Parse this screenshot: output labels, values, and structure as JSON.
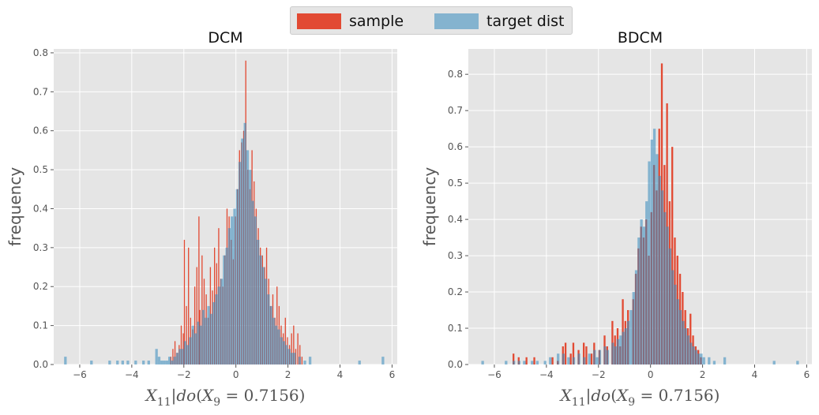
{
  "legend": {
    "items": [
      {
        "label": "sample",
        "color": "#E24A33"
      },
      {
        "label": "target dist",
        "color": "#348ABD"
      }
    ]
  },
  "chart_data": [
    {
      "type": "histogram",
      "title": "DCM",
      "xlabel": "X_{11}|do(X_9 = 0.7156)",
      "ylabel": "frequency",
      "xlim": [
        -7,
        6.2
      ],
      "ylim": [
        0,
        0.81
      ],
      "xticks": [
        -6,
        -4,
        -2,
        0,
        2,
        4,
        6
      ],
      "yticks": [
        0.0,
        0.1,
        0.2,
        0.3,
        0.4,
        0.5,
        0.6,
        0.7,
        0.8
      ],
      "ytick_labels": [
        "0.0",
        "0.1",
        "0.2",
        "0.3",
        "0.4",
        "0.5",
        "0.6",
        "0.7",
        "0.8"
      ],
      "grid": true,
      "series": [
        {
          "name": "sample",
          "color": "#E24A33",
          "bin_width": 0.04,
          "bins": [
            [
              -2.52,
              0.02
            ],
            [
              -2.44,
              0.04
            ],
            [
              -2.36,
              0.06
            ],
            [
              -2.28,
              0.03
            ],
            [
              -2.2,
              0.05
            ],
            [
              -2.12,
              0.1
            ],
            [
              -2.04,
              0.08
            ],
            [
              -2.0,
              0.32
            ],
            [
              -1.92,
              0.15
            ],
            [
              -1.84,
              0.3
            ],
            [
              -1.76,
              0.12
            ],
            [
              -1.68,
              0.09
            ],
            [
              -1.6,
              0.2
            ],
            [
              -1.52,
              0.25
            ],
            [
              -1.44,
              0.38
            ],
            [
              -1.4,
              0.14
            ],
            [
              -1.32,
              0.28
            ],
            [
              -1.24,
              0.22
            ],
            [
              -1.16,
              0.18
            ],
            [
              -1.08,
              0.12
            ],
            [
              -1.0,
              0.25
            ],
            [
              -0.92,
              0.19
            ],
            [
              -0.84,
              0.3
            ],
            [
              -0.76,
              0.26
            ],
            [
              -0.68,
              0.35
            ],
            [
              -0.6,
              0.22
            ],
            [
              -0.52,
              0.2
            ],
            [
              -0.44,
              0.28
            ],
            [
              -0.36,
              0.4
            ],
            [
              -0.28,
              0.38
            ],
            [
              -0.2,
              0.32
            ],
            [
              -0.12,
              0.27
            ],
            [
              -0.04,
              0.38
            ],
            [
              0.04,
              0.45
            ],
            [
              0.12,
              0.55
            ],
            [
              0.2,
              0.57
            ],
            [
              0.28,
              0.6
            ],
            [
              0.36,
              0.78
            ],
            [
              0.44,
              0.5
            ],
            [
              0.52,
              0.45
            ],
            [
              0.6,
              0.55
            ],
            [
              0.68,
              0.47
            ],
            [
              0.76,
              0.4
            ],
            [
              0.84,
              0.35
            ],
            [
              0.92,
              0.3
            ],
            [
              1.0,
              0.28
            ],
            [
              1.08,
              0.25
            ],
            [
              1.16,
              0.3
            ],
            [
              1.24,
              0.22
            ],
            [
              1.32,
              0.15
            ],
            [
              1.4,
              0.18
            ],
            [
              1.48,
              0.12
            ],
            [
              1.56,
              0.2
            ],
            [
              1.64,
              0.15
            ],
            [
              1.72,
              0.1
            ],
            [
              1.8,
              0.08
            ],
            [
              1.88,
              0.12
            ],
            [
              1.96,
              0.07
            ],
            [
              2.04,
              0.05
            ],
            [
              2.12,
              0.08
            ],
            [
              2.2,
              0.1
            ],
            [
              2.28,
              0.04
            ],
            [
              2.36,
              0.08
            ],
            [
              2.44,
              0.05
            ],
            [
              2.52,
              0.02
            ]
          ]
        },
        {
          "name": "target dist",
          "color": "#348ABD",
          "bin_width": 0.1,
          "bins": [
            [
              -6.6,
              0.02
            ],
            [
              -5.6,
              0.01
            ],
            [
              -4.9,
              0.01
            ],
            [
              -4.6,
              0.01
            ],
            [
              -4.4,
              0.01
            ],
            [
              -4.2,
              0.01
            ],
            [
              -3.9,
              0.01
            ],
            [
              -3.6,
              0.01
            ],
            [
              -3.4,
              0.01
            ],
            [
              -3.1,
              0.04
            ],
            [
              -3.0,
              0.02
            ],
            [
              -2.9,
              0.01
            ],
            [
              -2.8,
              0.01
            ],
            [
              -2.7,
              0.01
            ],
            [
              -2.6,
              0.02
            ],
            [
              -2.5,
              0.01
            ],
            [
              -2.4,
              0.02
            ],
            [
              -2.3,
              0.03
            ],
            [
              -2.2,
              0.04
            ],
            [
              -2.1,
              0.04
            ],
            [
              -2.0,
              0.06
            ],
            [
              -1.9,
              0.05
            ],
            [
              -1.8,
              0.07
            ],
            [
              -1.7,
              0.1
            ],
            [
              -1.6,
              0.08
            ],
            [
              -1.5,
              0.11
            ],
            [
              -1.4,
              0.1
            ],
            [
              -1.3,
              0.14
            ],
            [
              -1.2,
              0.12
            ],
            [
              -1.1,
              0.15
            ],
            [
              -1.0,
              0.13
            ],
            [
              -0.9,
              0.16
            ],
            [
              -0.8,
              0.18
            ],
            [
              -0.7,
              0.2
            ],
            [
              -0.6,
              0.22
            ],
            [
              -0.5,
              0.28
            ],
            [
              -0.4,
              0.3
            ],
            [
              -0.3,
              0.35
            ],
            [
              -0.2,
              0.38
            ],
            [
              -0.1,
              0.4
            ],
            [
              0.0,
              0.45
            ],
            [
              0.1,
              0.52
            ],
            [
              0.2,
              0.58
            ],
            [
              0.3,
              0.62
            ],
            [
              0.4,
              0.55
            ],
            [
              0.5,
              0.5
            ],
            [
              0.6,
              0.42
            ],
            [
              0.7,
              0.38
            ],
            [
              0.8,
              0.32
            ],
            [
              0.9,
              0.28
            ],
            [
              1.0,
              0.25
            ],
            [
              1.1,
              0.22
            ],
            [
              1.2,
              0.18
            ],
            [
              1.3,
              0.15
            ],
            [
              1.4,
              0.12
            ],
            [
              1.5,
              0.1
            ],
            [
              1.6,
              0.09
            ],
            [
              1.7,
              0.07
            ],
            [
              1.8,
              0.06
            ],
            [
              1.9,
              0.05
            ],
            [
              2.0,
              0.04
            ],
            [
              2.1,
              0.03
            ],
            [
              2.2,
              0.03
            ],
            [
              2.4,
              0.02
            ],
            [
              2.6,
              0.01
            ],
            [
              2.8,
              0.02
            ],
            [
              4.7,
              0.01
            ],
            [
              5.6,
              0.02
            ]
          ]
        }
      ]
    },
    {
      "type": "histogram",
      "title": "BDCM",
      "xlabel": "X_{11}|do(X_9 = 0.7156)",
      "ylabel": "frequency",
      "xlim": [
        -7,
        6.2
      ],
      "ylim": [
        0,
        0.87
      ],
      "xticks": [
        -6,
        -4,
        -2,
        0,
        2,
        4,
        6
      ],
      "yticks": [
        0.0,
        0.1,
        0.2,
        0.3,
        0.4,
        0.5,
        0.6,
        0.7,
        0.8
      ],
      "ytick_labels": [
        "0.0",
        "0.1",
        "0.2",
        "0.3",
        "0.4",
        "0.5",
        "0.6",
        "0.7",
        "0.8"
      ],
      "grid": true,
      "series": [
        {
          "name": "sample",
          "color": "#E24A33",
          "bin_width": 0.07,
          "bins": [
            [
              -5.3,
              0.03
            ],
            [
              -5.1,
              0.02
            ],
            [
              -4.8,
              0.02
            ],
            [
              -4.5,
              0.02
            ],
            [
              -3.8,
              0.02
            ],
            [
              -3.6,
              0.01
            ],
            [
              -3.4,
              0.05
            ],
            [
              -3.3,
              0.06
            ],
            [
              -3.1,
              0.03
            ],
            [
              -3.0,
              0.06
            ],
            [
              -2.8,
              0.04
            ],
            [
              -2.6,
              0.06
            ],
            [
              -2.5,
              0.05
            ],
            [
              -2.3,
              0.03
            ],
            [
              -2.2,
              0.06
            ],
            [
              -2.0,
              0.04
            ],
            [
              -1.8,
              0.08
            ],
            [
              -1.7,
              0.05
            ],
            [
              -1.5,
              0.12
            ],
            [
              -1.4,
              0.08
            ],
            [
              -1.3,
              0.1
            ],
            [
              -1.2,
              0.05
            ],
            [
              -1.1,
              0.18
            ],
            [
              -1.0,
              0.12
            ],
            [
              -0.9,
              0.15
            ],
            [
              -0.7,
              0.18
            ],
            [
              -0.6,
              0.25
            ],
            [
              -0.5,
              0.32
            ],
            [
              -0.4,
              0.38
            ],
            [
              -0.3,
              0.35
            ],
            [
              -0.2,
              0.4
            ],
            [
              -0.1,
              0.3
            ],
            [
              0.0,
              0.42
            ],
            [
              0.1,
              0.55
            ],
            [
              0.2,
              0.48
            ],
            [
              0.3,
              0.65
            ],
            [
              0.4,
              0.83
            ],
            [
              0.5,
              0.55
            ],
            [
              0.6,
              0.72
            ],
            [
              0.7,
              0.45
            ],
            [
              0.8,
              0.6
            ],
            [
              0.9,
              0.35
            ],
            [
              1.0,
              0.3
            ],
            [
              1.1,
              0.25
            ],
            [
              1.2,
              0.2
            ],
            [
              1.3,
              0.15
            ],
            [
              1.4,
              0.1
            ],
            [
              1.5,
              0.14
            ],
            [
              1.6,
              0.08
            ],
            [
              1.7,
              0.05
            ],
            [
              1.8,
              0.04
            ],
            [
              1.9,
              0.02
            ]
          ]
        },
        {
          "name": "target dist",
          "color": "#348ABD",
          "bin_width": 0.1,
          "bins": [
            [
              -6.5,
              0.01
            ],
            [
              -5.6,
              0.01
            ],
            [
              -5.3,
              0.01
            ],
            [
              -5.1,
              0.01
            ],
            [
              -4.9,
              0.01
            ],
            [
              -4.6,
              0.01
            ],
            [
              -4.4,
              0.01
            ],
            [
              -4.1,
              0.01
            ],
            [
              -3.9,
              0.02
            ],
            [
              -3.6,
              0.03
            ],
            [
              -3.4,
              0.03
            ],
            [
              -3.2,
              0.02
            ],
            [
              -3.0,
              0.02
            ],
            [
              -2.8,
              0.03
            ],
            [
              -2.6,
              0.02
            ],
            [
              -2.4,
              0.03
            ],
            [
              -2.2,
              0.04
            ],
            [
              -2.1,
              0.02
            ],
            [
              -2.0,
              0.04
            ],
            [
              -1.8,
              0.05
            ],
            [
              -1.7,
              0.04
            ],
            [
              -1.5,
              0.06
            ],
            [
              -1.4,
              0.05
            ],
            [
              -1.3,
              0.07
            ],
            [
              -1.2,
              0.08
            ],
            [
              -1.1,
              0.09
            ],
            [
              -1.0,
              0.1
            ],
            [
              -0.9,
              0.12
            ],
            [
              -0.8,
              0.15
            ],
            [
              -0.7,
              0.2
            ],
            [
              -0.6,
              0.26
            ],
            [
              -0.5,
              0.35
            ],
            [
              -0.4,
              0.4
            ],
            [
              -0.3,
              0.38
            ],
            [
              -0.2,
              0.45
            ],
            [
              -0.1,
              0.56
            ],
            [
              0.0,
              0.62
            ],
            [
              0.1,
              0.65
            ],
            [
              0.2,
              0.58
            ],
            [
              0.3,
              0.52
            ],
            [
              0.4,
              0.48
            ],
            [
              0.5,
              0.42
            ],
            [
              0.6,
              0.38
            ],
            [
              0.7,
              0.32
            ],
            [
              0.8,
              0.26
            ],
            [
              0.9,
              0.22
            ],
            [
              1.0,
              0.18
            ],
            [
              1.1,
              0.15
            ],
            [
              1.2,
              0.12
            ],
            [
              1.3,
              0.1
            ],
            [
              1.4,
              0.08
            ],
            [
              1.5,
              0.06
            ],
            [
              1.6,
              0.05
            ],
            [
              1.7,
              0.04
            ],
            [
              1.8,
              0.03
            ],
            [
              1.9,
              0.03
            ],
            [
              2.0,
              0.02
            ],
            [
              2.2,
              0.02
            ],
            [
              2.4,
              0.01
            ],
            [
              2.8,
              0.02
            ],
            [
              4.7,
              0.01
            ],
            [
              5.6,
              0.01
            ]
          ]
        }
      ]
    }
  ]
}
